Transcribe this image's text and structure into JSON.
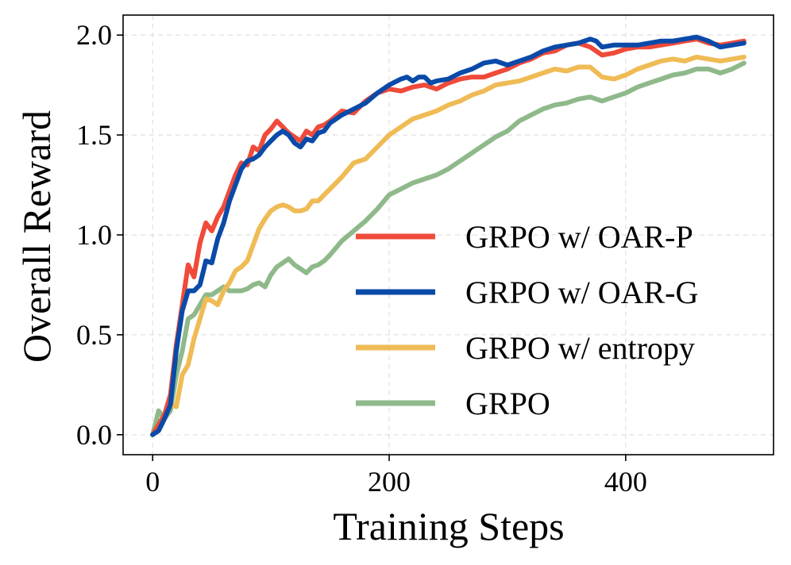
{
  "chart_data": {
    "type": "line",
    "title": "",
    "xlabel": "Training Steps",
    "ylabel": "Overall Reward",
    "xlim": [
      -25,
      525
    ],
    "ylim": [
      -0.1,
      2.1
    ],
    "xticks": [
      0,
      200,
      400
    ],
    "xtick_labels": [
      "0",
      "200",
      "400"
    ],
    "yticks": [
      0.0,
      0.5,
      1.0,
      1.5,
      2.0
    ],
    "ytick_labels": [
      "0.0",
      "0.5",
      "1.0",
      "1.5",
      "2.0"
    ],
    "grid": true,
    "legend_position": "center-right",
    "series": [
      {
        "name": "GRPO w/ OAR-P",
        "color": "#f04a3a",
        "x": [
          0,
          5,
          10,
          15,
          20,
          25,
          30,
          35,
          40,
          45,
          50,
          55,
          60,
          65,
          70,
          75,
          80,
          85,
          90,
          95,
          100,
          105,
          110,
          115,
          120,
          125,
          130,
          135,
          140,
          145,
          150,
          160,
          170,
          180,
          190,
          200,
          210,
          220,
          230,
          240,
          250,
          260,
          270,
          280,
          290,
          300,
          310,
          320,
          330,
          340,
          350,
          360,
          370,
          380,
          390,
          400,
          410,
          420,
          430,
          440,
          450,
          460,
          470,
          480,
          490,
          500
        ],
        "values": [
          0,
          0.05,
          0.1,
          0.2,
          0.45,
          0.65,
          0.85,
          0.79,
          0.96,
          1.06,
          1.02,
          1.09,
          1.14,
          1.22,
          1.3,
          1.36,
          1.35,
          1.44,
          1.42,
          1.5,
          1.53,
          1.57,
          1.54,
          1.51,
          1.49,
          1.47,
          1.52,
          1.5,
          1.54,
          1.55,
          1.57,
          1.62,
          1.61,
          1.67,
          1.71,
          1.73,
          1.72,
          1.74,
          1.75,
          1.73,
          1.76,
          1.78,
          1.79,
          1.79,
          1.81,
          1.83,
          1.86,
          1.88,
          1.91,
          1.92,
          1.95,
          1.96,
          1.94,
          1.9,
          1.91,
          1.93,
          1.94,
          1.94,
          1.95,
          1.96,
          1.97,
          1.98,
          1.96,
          1.95,
          1.96,
          1.97
        ]
      },
      {
        "name": "GRPO w/ OAR-G",
        "color": "#0a4aa8",
        "x": [
          0,
          5,
          10,
          15,
          20,
          25,
          30,
          35,
          40,
          45,
          50,
          55,
          60,
          65,
          70,
          75,
          80,
          85,
          90,
          95,
          100,
          105,
          110,
          115,
          120,
          125,
          130,
          135,
          140,
          145,
          150,
          160,
          170,
          180,
          190,
          200,
          210,
          215,
          220,
          225,
          230,
          235,
          240,
          250,
          260,
          270,
          280,
          290,
          300,
          310,
          320,
          330,
          340,
          350,
          360,
          370,
          375,
          380,
          390,
          400,
          410,
          420,
          430,
          440,
          450,
          460,
          470,
          480,
          490,
          500
        ],
        "values": [
          0,
          0.02,
          0.08,
          0.15,
          0.42,
          0.62,
          0.72,
          0.72,
          0.75,
          0.87,
          0.86,
          0.98,
          1.06,
          1.17,
          1.25,
          1.33,
          1.37,
          1.38,
          1.4,
          1.44,
          1.47,
          1.5,
          1.52,
          1.5,
          1.46,
          1.44,
          1.48,
          1.47,
          1.51,
          1.52,
          1.56,
          1.6,
          1.63,
          1.66,
          1.71,
          1.75,
          1.78,
          1.79,
          1.77,
          1.79,
          1.79,
          1.76,
          1.77,
          1.78,
          1.81,
          1.83,
          1.86,
          1.87,
          1.85,
          1.87,
          1.89,
          1.92,
          1.94,
          1.95,
          1.96,
          1.98,
          1.97,
          1.94,
          1.95,
          1.95,
          1.95,
          1.96,
          1.97,
          1.97,
          1.98,
          1.99,
          1.97,
          1.94,
          1.95,
          1.96
        ]
      },
      {
        "name": "GRPO w/ entropy",
        "color": "#efbb55",
        "x": [
          0,
          5,
          10,
          15,
          20,
          25,
          30,
          35,
          40,
          45,
          50,
          55,
          60,
          65,
          70,
          75,
          80,
          85,
          90,
          95,
          100,
          105,
          110,
          115,
          120,
          125,
          130,
          135,
          140,
          145,
          150,
          160,
          170,
          180,
          190,
          200,
          210,
          220,
          230,
          240,
          250,
          260,
          270,
          280,
          290,
          300,
          310,
          320,
          330,
          340,
          350,
          360,
          370,
          380,
          390,
          400,
          410,
          420,
          430,
          440,
          450,
          460,
          470,
          480,
          490,
          500
        ],
        "values": [
          0,
          0.02,
          0.08,
          0.15,
          0.14,
          0.3,
          0.35,
          0.48,
          0.58,
          0.68,
          0.67,
          0.65,
          0.72,
          0.76,
          0.82,
          0.84,
          0.87,
          0.95,
          1.03,
          1.08,
          1.12,
          1.14,
          1.15,
          1.14,
          1.12,
          1.12,
          1.13,
          1.17,
          1.17,
          1.2,
          1.23,
          1.29,
          1.36,
          1.38,
          1.44,
          1.5,
          1.54,
          1.58,
          1.6,
          1.62,
          1.65,
          1.67,
          1.7,
          1.72,
          1.75,
          1.76,
          1.77,
          1.79,
          1.81,
          1.83,
          1.82,
          1.84,
          1.84,
          1.79,
          1.78,
          1.8,
          1.83,
          1.85,
          1.87,
          1.88,
          1.87,
          1.89,
          1.88,
          1.87,
          1.88,
          1.89
        ]
      },
      {
        "name": "GRPO",
        "color": "#8fb98a",
        "x": [
          0,
          5,
          10,
          15,
          20,
          25,
          30,
          35,
          40,
          45,
          50,
          55,
          60,
          65,
          70,
          75,
          80,
          85,
          90,
          95,
          100,
          105,
          110,
          115,
          120,
          125,
          130,
          135,
          140,
          145,
          150,
          160,
          170,
          180,
          190,
          200,
          210,
          220,
          230,
          240,
          250,
          260,
          270,
          280,
          290,
          300,
          310,
          320,
          330,
          340,
          350,
          360,
          370,
          380,
          390,
          400,
          410,
          420,
          430,
          440,
          450,
          460,
          470,
          480,
          490,
          500
        ],
        "values": [
          0,
          0.12,
          0.08,
          0.12,
          0.3,
          0.42,
          0.58,
          0.6,
          0.65,
          0.7,
          0.7,
          0.72,
          0.74,
          0.72,
          0.72,
          0.72,
          0.73,
          0.75,
          0.76,
          0.74,
          0.8,
          0.84,
          0.86,
          0.88,
          0.85,
          0.83,
          0.81,
          0.84,
          0.85,
          0.87,
          0.9,
          0.97,
          1.02,
          1.07,
          1.13,
          1.2,
          1.23,
          1.26,
          1.28,
          1.3,
          1.33,
          1.37,
          1.41,
          1.45,
          1.49,
          1.52,
          1.57,
          1.6,
          1.63,
          1.65,
          1.66,
          1.68,
          1.69,
          1.67,
          1.69,
          1.71,
          1.74,
          1.76,
          1.78,
          1.8,
          1.81,
          1.83,
          1.83,
          1.81,
          1.83,
          1.86
        ]
      }
    ]
  }
}
